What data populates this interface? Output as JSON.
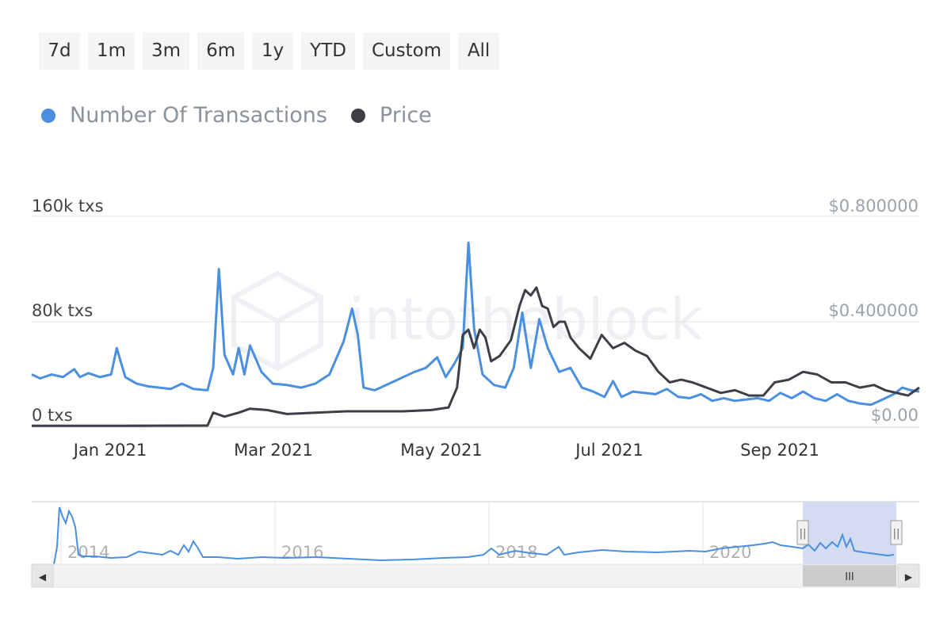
{
  "range_selector": {
    "buttons": [
      "7d",
      "1m",
      "3m",
      "6m",
      "1y",
      "YTD",
      "Custom",
      "All"
    ]
  },
  "legend": {
    "items": [
      {
        "label": "Number Of Transactions",
        "color": "#4a8fe0"
      },
      {
        "label": "Price",
        "color": "#3c4046"
      }
    ]
  },
  "watermark": "intotheblock",
  "chart_data": {
    "type": "line",
    "x_tick_labels": [
      "Jan 2021",
      "Mar 2021",
      "May 2021",
      "Jul 2021",
      "Sep 2021"
    ],
    "y_left": {
      "ticks": [
        "0 txs",
        "80k txs",
        "160k txs"
      ],
      "range": [
        0,
        160000
      ]
    },
    "y_right": {
      "ticks": [
        "$0.00",
        "$0.400000",
        "$0.800000"
      ],
      "range": [
        0,
        0.8
      ]
    },
    "grid": true,
    "legend_position": "top-left",
    "x_range": [
      "2020-12-15",
      "2021-10-24"
    ],
    "series": [
      {
        "name": "Number Of Transactions",
        "axis": "left",
        "color": "#4a8fe0",
        "points": [
          [
            "2020-12-15",
            40000
          ],
          [
            "2020-12-18",
            37000
          ],
          [
            "2020-12-22",
            40000
          ],
          [
            "2020-12-26",
            38000
          ],
          [
            "2020-12-30",
            44000
          ],
          [
            "2021-01-01",
            38000
          ],
          [
            "2021-01-04",
            41000
          ],
          [
            "2021-01-08",
            38000
          ],
          [
            "2021-01-12",
            40000
          ],
          [
            "2021-01-14",
            60000
          ],
          [
            "2021-01-17",
            38000
          ],
          [
            "2021-01-21",
            33000
          ],
          [
            "2021-01-25",
            31000
          ],
          [
            "2021-01-29",
            30000
          ],
          [
            "2021-02-02",
            29000
          ],
          [
            "2021-02-06",
            33000
          ],
          [
            "2021-02-10",
            29000
          ],
          [
            "2021-02-15",
            28000
          ],
          [
            "2021-02-17",
            45000
          ],
          [
            "2021-02-19",
            120000
          ],
          [
            "2021-02-21",
            55000
          ],
          [
            "2021-02-24",
            40000
          ],
          [
            "2021-02-26",
            60000
          ],
          [
            "2021-02-28",
            40000
          ],
          [
            "2021-03-02",
            62000
          ],
          [
            "2021-03-06",
            42000
          ],
          [
            "2021-03-10",
            33000
          ],
          [
            "2021-03-15",
            32000
          ],
          [
            "2021-03-20",
            30000
          ],
          [
            "2021-03-25",
            33000
          ],
          [
            "2021-03-30",
            40000
          ],
          [
            "2021-04-04",
            65000
          ],
          [
            "2021-04-07",
            90000
          ],
          [
            "2021-04-09",
            70000
          ],
          [
            "2021-04-11",
            30000
          ],
          [
            "2021-04-15",
            28000
          ],
          [
            "2021-04-20",
            33000
          ],
          [
            "2021-04-25",
            38000
          ],
          [
            "2021-04-29",
            42000
          ],
          [
            "2021-05-03",
            45000
          ],
          [
            "2021-05-07",
            53000
          ],
          [
            "2021-05-10",
            38000
          ],
          [
            "2021-05-13",
            48000
          ],
          [
            "2021-05-16",
            60000
          ],
          [
            "2021-05-18",
            140000
          ],
          [
            "2021-05-20",
            75000
          ],
          [
            "2021-05-23",
            40000
          ],
          [
            "2021-05-27",
            32000
          ],
          [
            "2021-05-31",
            30000
          ],
          [
            "2021-06-03",
            45000
          ],
          [
            "2021-06-06",
            87000
          ],
          [
            "2021-06-09",
            45000
          ],
          [
            "2021-06-12",
            82000
          ],
          [
            "2021-06-15",
            60000
          ],
          [
            "2021-06-19",
            42000
          ],
          [
            "2021-06-23",
            45000
          ],
          [
            "2021-06-27",
            30000
          ],
          [
            "2021-07-01",
            27000
          ],
          [
            "2021-07-05",
            23000
          ],
          [
            "2021-07-08",
            35000
          ],
          [
            "2021-07-11",
            23000
          ],
          [
            "2021-07-15",
            27000
          ],
          [
            "2021-07-19",
            26000
          ],
          [
            "2021-07-23",
            25000
          ],
          [
            "2021-07-27",
            29000
          ],
          [
            "2021-07-31",
            23000
          ],
          [
            "2021-08-04",
            22000
          ],
          [
            "2021-08-08",
            25000
          ],
          [
            "2021-08-12",
            20000
          ],
          [
            "2021-08-16",
            22000
          ],
          [
            "2021-08-20",
            20000
          ],
          [
            "2021-08-24",
            21000
          ],
          [
            "2021-08-28",
            22000
          ],
          [
            "2021-09-01",
            20000
          ],
          [
            "2021-09-05",
            26000
          ],
          [
            "2021-09-09",
            22000
          ],
          [
            "2021-09-13",
            27000
          ],
          [
            "2021-09-17",
            22000
          ],
          [
            "2021-09-21",
            20000
          ],
          [
            "2021-09-25",
            25000
          ],
          [
            "2021-09-29",
            20000
          ],
          [
            "2021-10-03",
            18000
          ],
          [
            "2021-10-07",
            17000
          ],
          [
            "2021-10-11",
            21000
          ],
          [
            "2021-10-15",
            25000
          ],
          [
            "2021-10-18",
            30000
          ],
          [
            "2021-10-21",
            28000
          ],
          [
            "2021-10-24",
            27000
          ]
        ]
      },
      {
        "name": "Price",
        "axis": "right",
        "color": "#3c4046",
        "points": [
          [
            "2020-12-15",
            0.005
          ],
          [
            "2021-01-15",
            0.005
          ],
          [
            "2021-02-10",
            0.006
          ],
          [
            "2021-02-15",
            0.006
          ],
          [
            "2021-02-17",
            0.055
          ],
          [
            "2021-02-21",
            0.04
          ],
          [
            "2021-02-26",
            0.055
          ],
          [
            "2021-03-02",
            0.07
          ],
          [
            "2021-03-08",
            0.065
          ],
          [
            "2021-03-15",
            0.05
          ],
          [
            "2021-03-25",
            0.055
          ],
          [
            "2021-04-05",
            0.06
          ],
          [
            "2021-04-15",
            0.06
          ],
          [
            "2021-04-25",
            0.06
          ],
          [
            "2021-05-05",
            0.065
          ],
          [
            "2021-05-11",
            0.075
          ],
          [
            "2021-05-14",
            0.15
          ],
          [
            "2021-05-16",
            0.35
          ],
          [
            "2021-05-18",
            0.37
          ],
          [
            "2021-05-20",
            0.3
          ],
          [
            "2021-05-22",
            0.37
          ],
          [
            "2021-05-24",
            0.34
          ],
          [
            "2021-05-26",
            0.25
          ],
          [
            "2021-05-29",
            0.27
          ],
          [
            "2021-06-02",
            0.33
          ],
          [
            "2021-06-05",
            0.46
          ],
          [
            "2021-06-07",
            0.52
          ],
          [
            "2021-06-09",
            0.5
          ],
          [
            "2021-06-11",
            0.53
          ],
          [
            "2021-06-13",
            0.46
          ],
          [
            "2021-06-15",
            0.45
          ],
          [
            "2021-06-17",
            0.38
          ],
          [
            "2021-06-19",
            0.4
          ],
          [
            "2021-06-21",
            0.4
          ],
          [
            "2021-06-23",
            0.34
          ],
          [
            "2021-06-26",
            0.3
          ],
          [
            "2021-06-30",
            0.26
          ],
          [
            "2021-07-04",
            0.35
          ],
          [
            "2021-07-08",
            0.3
          ],
          [
            "2021-07-12",
            0.32
          ],
          [
            "2021-07-16",
            0.29
          ],
          [
            "2021-07-20",
            0.27
          ],
          [
            "2021-07-24",
            0.21
          ],
          [
            "2021-07-28",
            0.17
          ],
          [
            "2021-08-01",
            0.18
          ],
          [
            "2021-08-05",
            0.17
          ],
          [
            "2021-08-10",
            0.15
          ],
          [
            "2021-08-15",
            0.13
          ],
          [
            "2021-08-20",
            0.14
          ],
          [
            "2021-08-25",
            0.12
          ],
          [
            "2021-08-30",
            0.12
          ],
          [
            "2021-09-03",
            0.17
          ],
          [
            "2021-09-08",
            0.18
          ],
          [
            "2021-09-13",
            0.21
          ],
          [
            "2021-09-18",
            0.2
          ],
          [
            "2021-09-23",
            0.17
          ],
          [
            "2021-09-28",
            0.17
          ],
          [
            "2021-10-03",
            0.15
          ],
          [
            "2021-10-08",
            0.16
          ],
          [
            "2021-10-12",
            0.14
          ],
          [
            "2021-10-16",
            0.13
          ],
          [
            "2021-10-20",
            0.12
          ],
          [
            "2021-10-24",
            0.15
          ]
        ]
      }
    ]
  },
  "navigator": {
    "x_tick_labels": [
      "2014",
      "2016",
      "2018",
      "2020"
    ],
    "scroll_thumb_glyph": "III",
    "scroll_left_arrow": "◀",
    "scroll_right_arrow": "▶",
    "handle_glyph": "||"
  }
}
